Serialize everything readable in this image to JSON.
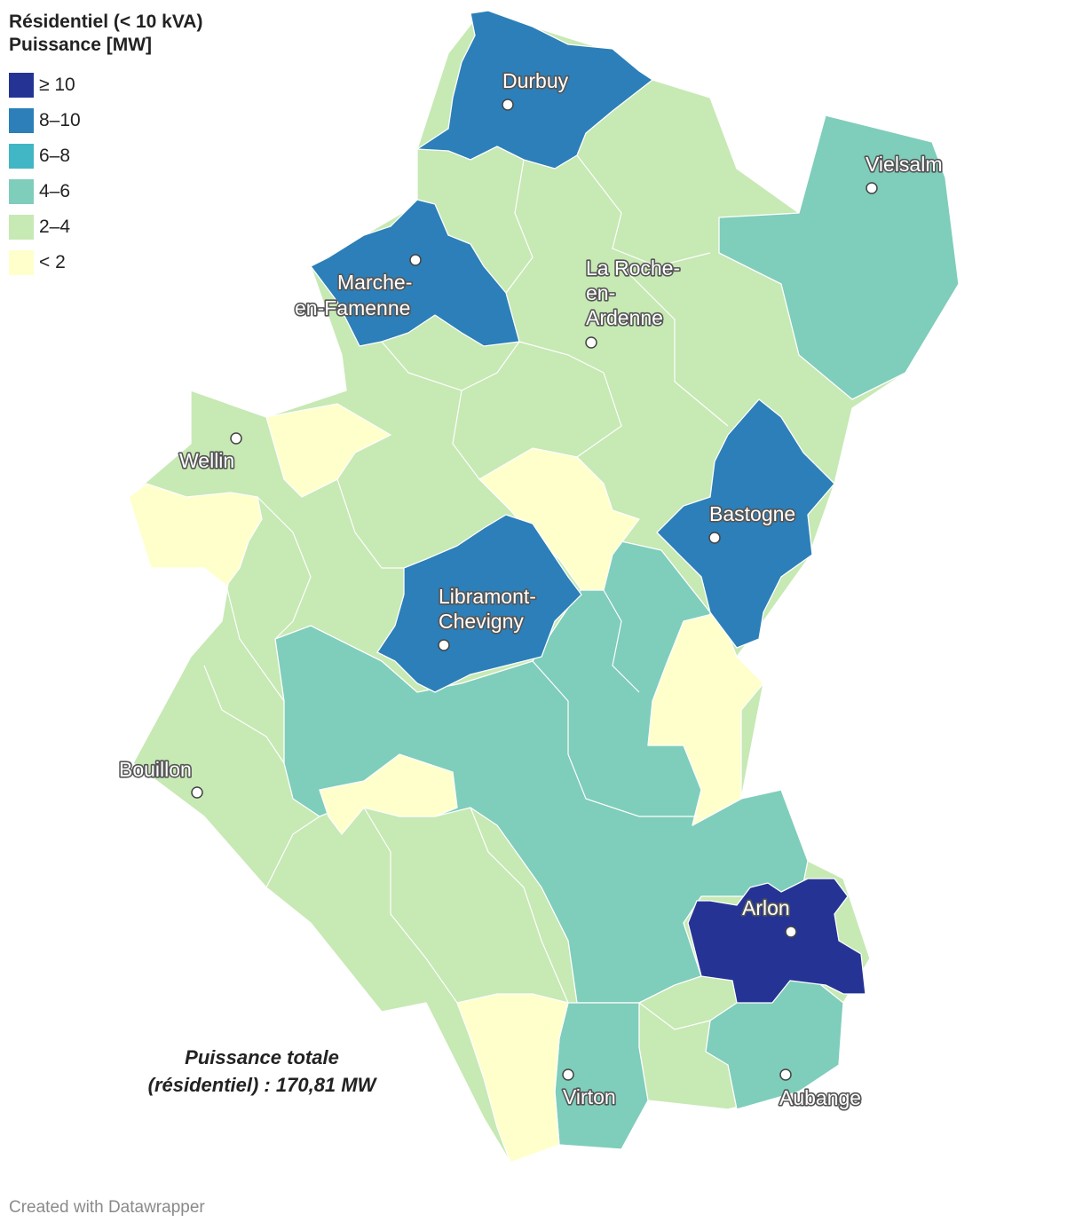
{
  "legend": {
    "title_line1": "Résidentiel (< 10 kVA)",
    "title_line2": "Puissance [MW]",
    "classes": [
      {
        "label": "≥ 10",
        "color": "#253494"
      },
      {
        "label": "8–10",
        "color": "#2c7fb8"
      },
      {
        "label": "6–8",
        "color": "#41b6c4"
      },
      {
        "label": "4–6",
        "color": "#7fcdbb"
      },
      {
        "label": "2–4",
        "color": "#c7e9b4"
      },
      {
        "label": "< 2",
        "color": "#ffffcc"
      }
    ]
  },
  "cities": [
    {
      "name": "Durbuy",
      "lines": [
        "Durbuy"
      ]
    },
    {
      "name": "Vielsalm",
      "lines": [
        "Vielsalm"
      ]
    },
    {
      "name": "Marche-en-Famenne",
      "lines": [
        "Marche-",
        "en-Famenne"
      ]
    },
    {
      "name": "La Roche-en-Ardenne",
      "lines": [
        "La Roche-",
        "en-",
        "Ardenne"
      ]
    },
    {
      "name": "Wellin",
      "lines": [
        "Wellin"
      ]
    },
    {
      "name": "Bastogne",
      "lines": [
        "Bastogne"
      ]
    },
    {
      "name": "Libramont-Chevigny",
      "lines": [
        "Libramont-",
        "Chevigny"
      ]
    },
    {
      "name": "Bouillon",
      "lines": [
        "Bouillon"
      ]
    },
    {
      "name": "Arlon",
      "lines": [
        "Arlon"
      ]
    },
    {
      "name": "Virton",
      "lines": [
        "Virton"
      ]
    },
    {
      "name": "Aubange",
      "lines": [
        "Aubange"
      ]
    }
  ],
  "annotation": {
    "line1": "Puissance totale",
    "line2": "(résidentiel) : 170,81 MW"
  },
  "credit": "Created with Datawrapper"
}
